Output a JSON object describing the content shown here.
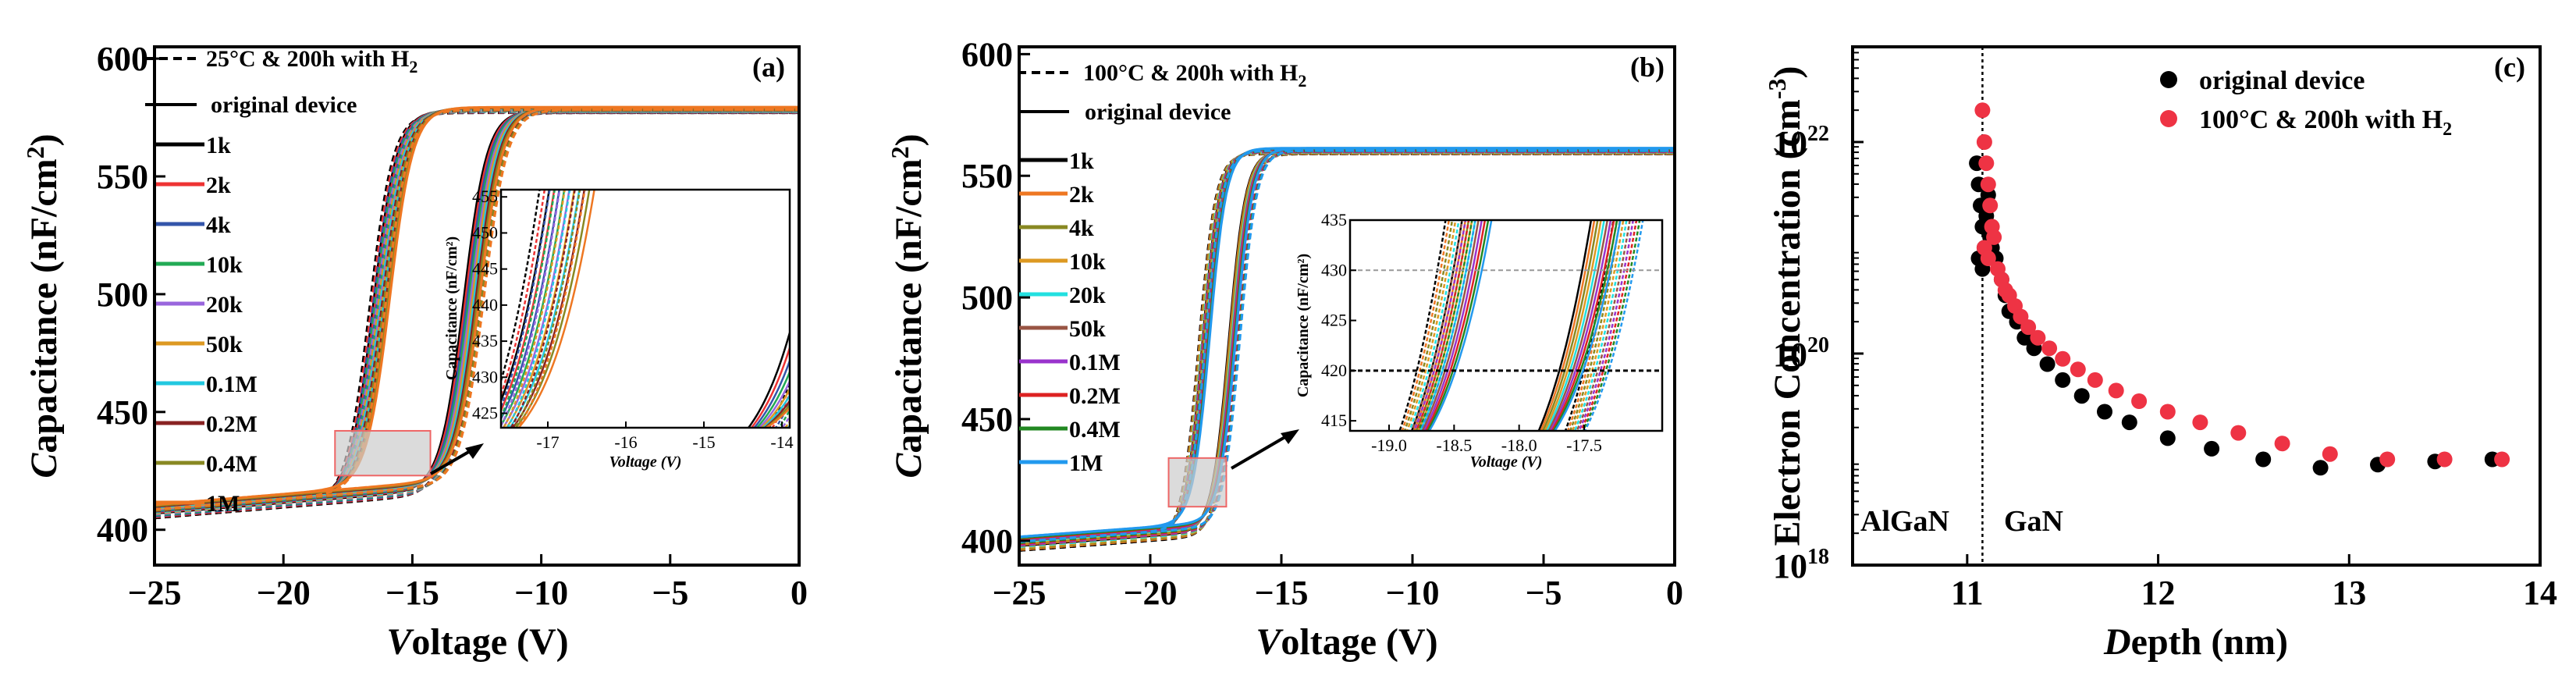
{
  "colors": {
    "1k": "#000000",
    "2k": "#ee3333",
    "4k": "#3355aa",
    "10k": "#22aa55",
    "20k": "#9966dd",
    "50k": "#dd9922",
    "0.1M": "#22c8e0",
    "0.2M": "#882222",
    "0.4M": "#888822",
    "1M": "#ee7722",
    "b_1k": "#000000",
    "b_2k": "#ee7722",
    "b_4k": "#888822",
    "b_10k": "#dd9922",
    "b_20k": "#22e0e0",
    "b_50k": "#995544",
    "b_0.1M": "#9933cc",
    "b_0.2M": "#dd2222",
    "b_0.4M": "#228822",
    "b_1M": "#2299ee",
    "orig_dot": "#000000",
    "h2_dot": "#ee3344",
    "zoom_fill": "#cccccc",
    "zoom_edge": "#ee6666"
  },
  "chart_data": [
    {
      "type": "line",
      "panel": "(a)",
      "xlabel_italic": "V",
      "xlabel_rest": "oltage (V)",
      "ylabel_italic": "C",
      "ylabel_rest": "apacitance (nF/cm",
      "ylabel_sup": "2",
      "ylabel_close": ")",
      "xlim": [
        -25,
        0
      ],
      "ylim": [
        385,
        605
      ],
      "xticks": [
        "−25",
        "−20",
        "−15",
        "−10",
        "−5",
        "0"
      ],
      "xtick_values": [
        -25,
        -20,
        -15,
        -10,
        -5,
        0
      ],
      "yticks": [
        "400",
        "450",
        "500",
        "550",
        "600"
      ],
      "ytick_values": [
        400,
        450,
        500,
        550,
        600
      ],
      "legend_dashed_pre": "25°C & 200h with H",
      "legend_dashed_sub": "2",
      "legend_solid": "original device",
      "frequencies": [
        "1k",
        "2k",
        "4k",
        "10k",
        "20k",
        "50k",
        "0.1M",
        "0.2M",
        "0.4M",
        "1M"
      ],
      "forward_threshold_V": -16.5,
      "reverse_threshold_V": -13.0,
      "accumulation_nF": 578,
      "depletion_at_minus25": 407,
      "zoom_box": {
        "x": [
          -18,
          -14.3
        ],
        "y": [
          423,
          442
        ]
      },
      "inset": {
        "xlim": [
          -17.6,
          -13.9
        ],
        "ylim": [
          423,
          456
        ],
        "xticks": [
          "-17",
          "-16",
          "-15",
          "-14"
        ],
        "xtick_values": [
          -17,
          -16,
          -15,
          -14
        ],
        "yticks": [
          "425",
          "430",
          "435",
          "440",
          "445",
          "450",
          "455"
        ],
        "ytick_values": [
          425,
          430,
          435,
          440,
          445,
          450,
          455
        ],
        "xlabel": "Voltage (V)",
        "ylabel": "Capacitance (nF/cm²)"
      }
    },
    {
      "type": "line",
      "panel": "(b)",
      "xlabel_italic": "V",
      "xlabel_rest": "oltage (V)",
      "ylabel_italic": "C",
      "ylabel_rest": "apacitance (nF/cm",
      "ylabel_sup": "2",
      "ylabel_close": ")",
      "xlim": [
        -25,
        0
      ],
      "ylim": [
        390,
        603
      ],
      "xticks": [
        "−25",
        "−20",
        "−15",
        "−10",
        "−5",
        "0"
      ],
      "xtick_values": [
        -25,
        -20,
        -15,
        -10,
        -5,
        0
      ],
      "yticks": [
        "400",
        "450",
        "500",
        "550",
        "600"
      ],
      "ytick_values": [
        400,
        450,
        500,
        550,
        600
      ],
      "legend_dashed_pre": "100°C & 200h with H",
      "legend_dashed_sub": "2",
      "legend_solid": "original device",
      "frequencies": [
        "1k",
        "2k",
        "4k",
        "10k",
        "20k",
        "50k",
        "0.1M",
        "0.2M",
        "0.4M",
        "1M"
      ],
      "forward_threshold_V": -18.0,
      "reverse_threshold_V": -17.0,
      "accumulation_nF": 560,
      "depletion_at_minus25": 398,
      "zoom_box": {
        "x": [
          -19.3,
          -17.1
        ],
        "y": [
          414,
          434
        ]
      },
      "inset": {
        "xlim": [
          -19.3,
          -16.9
        ],
        "ylim": [
          414,
          435
        ],
        "xticks": [
          "-19.0",
          "-18.5",
          "-18.0",
          "-17.5"
        ],
        "xtick_values": [
          -19.0,
          -18.5,
          -18.0,
          -17.5
        ],
        "yticks": [
          "415",
          "420",
          "425",
          "430",
          "435"
        ],
        "ytick_values": [
          415,
          420,
          425,
          430,
          435
        ],
        "xlabel": "Voltage (V)",
        "ylabel": "Capacitance (nF/cm²)"
      }
    },
    {
      "type": "scatter",
      "panel": "(c)",
      "xlabel_italic": "D",
      "xlabel_rest": "epth (nm)",
      "ylabel_pre": "Electron Concentration (cm",
      "ylabel_sup": "-3",
      "ylabel_close": ")",
      "xlim": [
        10.4,
        14.0
      ],
      "ylim_log10": [
        18,
        22.9
      ],
      "xticks": [
        "11",
        "12",
        "13",
        "14"
      ],
      "xtick_values": [
        11,
        12,
        13,
        14
      ],
      "yticks_base": "10",
      "yticks_exp": [
        "18",
        "20",
        "22"
      ],
      "ytick_log_values": [
        18,
        20,
        22
      ],
      "boundary_nm": 11.08,
      "region_left": "AlGaN",
      "region_right": "GaN",
      "series": [
        {
          "name": "original device",
          "x": [
            11.05,
            11.06,
            11.07,
            11.08,
            11.09,
            11.1,
            11.11,
            11.12,
            11.06,
            11.08,
            11.1,
            11.13,
            11.15,
            11.18,
            11.2,
            11.22,
            11.26,
            11.3,
            11.35,
            11.42,
            11.5,
            11.6,
            11.72,
            11.85,
            12.05,
            12.28,
            12.55,
            12.85,
            13.15,
            13.45,
            13.75
          ],
          "log10y": [
            21.8,
            21.6,
            21.4,
            21.2,
            21.0,
            21.3,
            21.5,
            21.1,
            20.9,
            20.8,
            21.2,
            21.0,
            20.9,
            20.7,
            20.55,
            20.4,
            20.3,
            20.15,
            20.05,
            19.9,
            19.75,
            19.6,
            19.45,
            19.35,
            19.2,
            19.1,
            19.0,
            18.92,
            18.95,
            18.98,
            19.0
          ]
        },
        {
          "name": "100°C & 200h with H",
          "name_sub": "2",
          "x": [
            11.08,
            11.09,
            11.1,
            11.11,
            11.12,
            11.13,
            11.09,
            11.11,
            11.14,
            11.16,
            11.18,
            11.2,
            11.22,
            11.25,
            11.28,
            11.32,
            11.37,
            11.43,
            11.5,
            11.58,
            11.67,
            11.78,
            11.9,
            12.05,
            12.22,
            12.42,
            12.65,
            12.9,
            13.2,
            13.5,
            13.8
          ],
          "log10y": [
            22.3,
            22.0,
            21.8,
            21.6,
            21.4,
            21.2,
            21.0,
            20.9,
            21.1,
            20.8,
            20.7,
            20.6,
            20.55,
            20.45,
            20.35,
            20.25,
            20.15,
            20.05,
            19.95,
            19.85,
            19.75,
            19.65,
            19.55,
            19.45,
            19.35,
            19.25,
            19.15,
            19.05,
            19.0,
            19.0,
            19.0
          ]
        }
      ]
    }
  ]
}
